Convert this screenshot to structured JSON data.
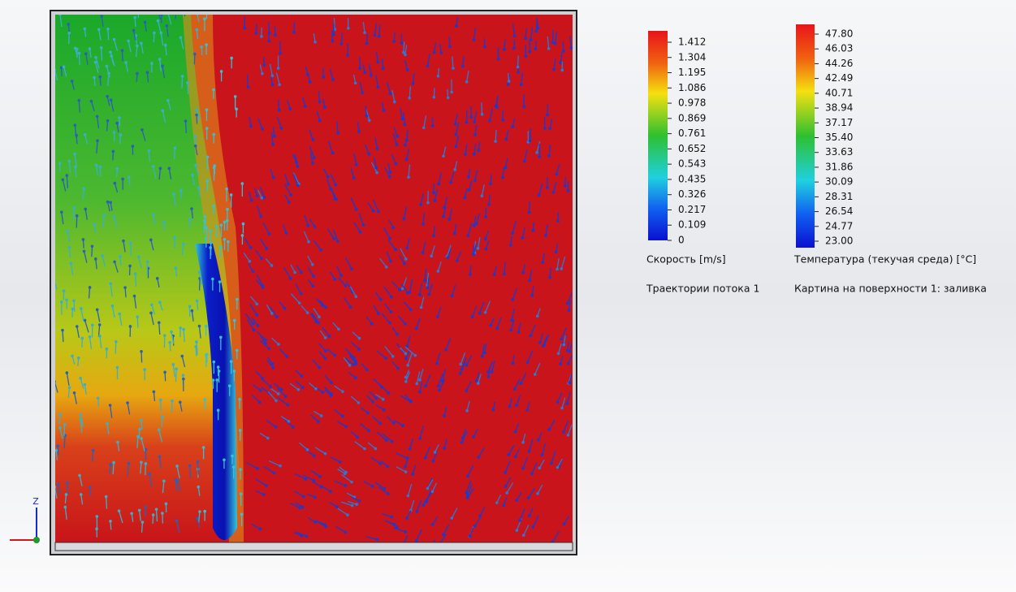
{
  "legends": [
    {
      "ticks": [
        "1.412",
        "1.304",
        "1.195",
        "1.086",
        "0.978",
        "0.869",
        "0.761",
        "0.652",
        "0.543",
        "0.435",
        "0.326",
        "0.217",
        "0.109",
        "0"
      ],
      "caption": "Скорость [m/s]",
      "subcaption": "Траектории потока 1"
    },
    {
      "ticks": [
        "47.80",
        "46.03",
        "44.26",
        "42.49",
        "40.71",
        "38.94",
        "37.17",
        "35.40",
        "33.63",
        "31.86",
        "30.09",
        "28.31",
        "26.54",
        "24.77",
        "23.00"
      ],
      "caption": "Температура (текучая среда) [°C]",
      "subcaption": "Картина на поверхности 1: заливка"
    }
  ],
  "triad": {
    "z": "Z"
  }
}
